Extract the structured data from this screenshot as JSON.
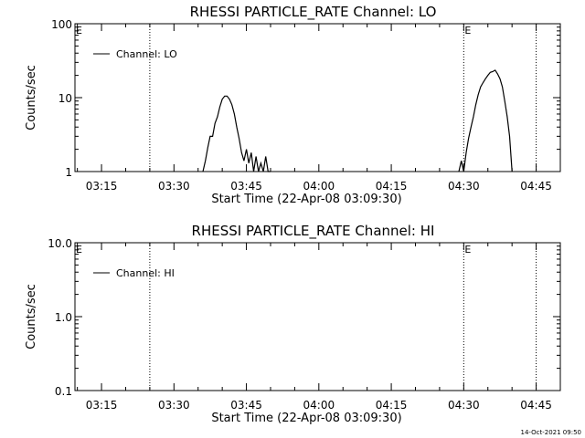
{
  "footer": {
    "timestamp": "14-Oct-2021 09:50"
  },
  "chart_data": [
    {
      "type": "line",
      "title": "RHESSI PARTICLE_RATE Channel: LO",
      "xlabel": "Start Time (22-Apr-08 03:09:30)",
      "ylabel": "Counts/sec",
      "y_scale": "log",
      "ylim": [
        1,
        100
      ],
      "y_ticks": [
        "1",
        "10",
        "100"
      ],
      "x_ticks": [
        "03:15",
        "03:30",
        "03:45",
        "04:00",
        "04:15",
        "04:30",
        "04:45"
      ],
      "xlim": [
        "03:09:30",
        "04:50"
      ],
      "legend": {
        "placement": "top-left",
        "entries": [
          "Channel: LO"
        ]
      },
      "vlines": [
        "03:25",
        "04:30",
        "04:45"
      ],
      "event_markers": [
        {
          "time": "03:09:30",
          "label": "E"
        },
        {
          "time": "04:30",
          "label": "E"
        }
      ],
      "series": [
        {
          "name": "Channel: LO",
          "x": [
            "03:36:00",
            "03:36:30",
            "03:37:00",
            "03:37:30",
            "03:38:00",
            "03:38:30",
            "03:39:00",
            "03:39:30",
            "03:40:00",
            "03:40:30",
            "03:41:00",
            "03:41:30",
            "03:42:00",
            "03:42:30",
            "03:43:00",
            "03:43:30",
            "03:44:00",
            "03:44:30",
            "03:45:00",
            "03:45:30",
            "03:46:00",
            "03:46:30",
            "03:47:00",
            "03:47:30",
            "03:48:00",
            "03:48:30",
            "03:49:00",
            "03:49:30",
            "03:50:00",
            "04:29:00",
            "04:29:30",
            "04:30:00",
            "04:30:30",
            "04:31:00",
            "04:31:30",
            "04:32:00",
            "04:32:30",
            "04:33:00",
            "04:33:30",
            "04:34:00",
            "04:34:30",
            "04:35:00",
            "04:35:30",
            "04:36:00",
            "04:36:30",
            "04:37:00",
            "04:37:30",
            "04:38:00",
            "04:38:30",
            "04:39:00",
            "04:39:30",
            "04:40:00"
          ],
          "values": [
            1,
            1.4,
            2.1,
            3.0,
            3.0,
            4.5,
            5.5,
            7.5,
            9.5,
            10.5,
            10.5,
            9.5,
            8.0,
            6.0,
            4.0,
            2.8,
            1.8,
            1.4,
            2.0,
            1.3,
            1.8,
            1.0,
            1.6,
            1.0,
            1.3,
            1.0,
            1.6,
            1.0,
            1.0,
            1,
            1.4,
            1,
            1.8,
            2.8,
            4.0,
            5.5,
            8.0,
            11.0,
            14.0,
            16.0,
            18.0,
            20.0,
            22.0,
            22.5,
            23.5,
            21.0,
            18.0,
            14.0,
            9.0,
            5.5,
            3.0,
            1.0
          ]
        }
      ]
    },
    {
      "type": "line",
      "title": "RHESSI PARTICLE_RATE Channel: HI",
      "xlabel": "Start Time (22-Apr-08 03:09:30)",
      "ylabel": "Counts/sec",
      "y_scale": "log",
      "ylim": [
        0.1,
        10
      ],
      "y_ticks": [
        "0.1",
        "1.0",
        "10.0"
      ],
      "x_ticks": [
        "03:15",
        "03:30",
        "03:45",
        "04:00",
        "04:15",
        "04:30",
        "04:45"
      ],
      "xlim": [
        "03:09:30",
        "04:50"
      ],
      "legend": {
        "placement": "top-left",
        "entries": [
          "Channel: HI"
        ]
      },
      "vlines": [
        "03:25",
        "04:30",
        "04:45"
      ],
      "event_markers": [
        {
          "time": "03:09:30",
          "label": "E"
        },
        {
          "time": "04:30",
          "label": "E"
        }
      ],
      "series": [
        {
          "name": "Channel: HI",
          "x": [],
          "values": []
        }
      ]
    }
  ]
}
